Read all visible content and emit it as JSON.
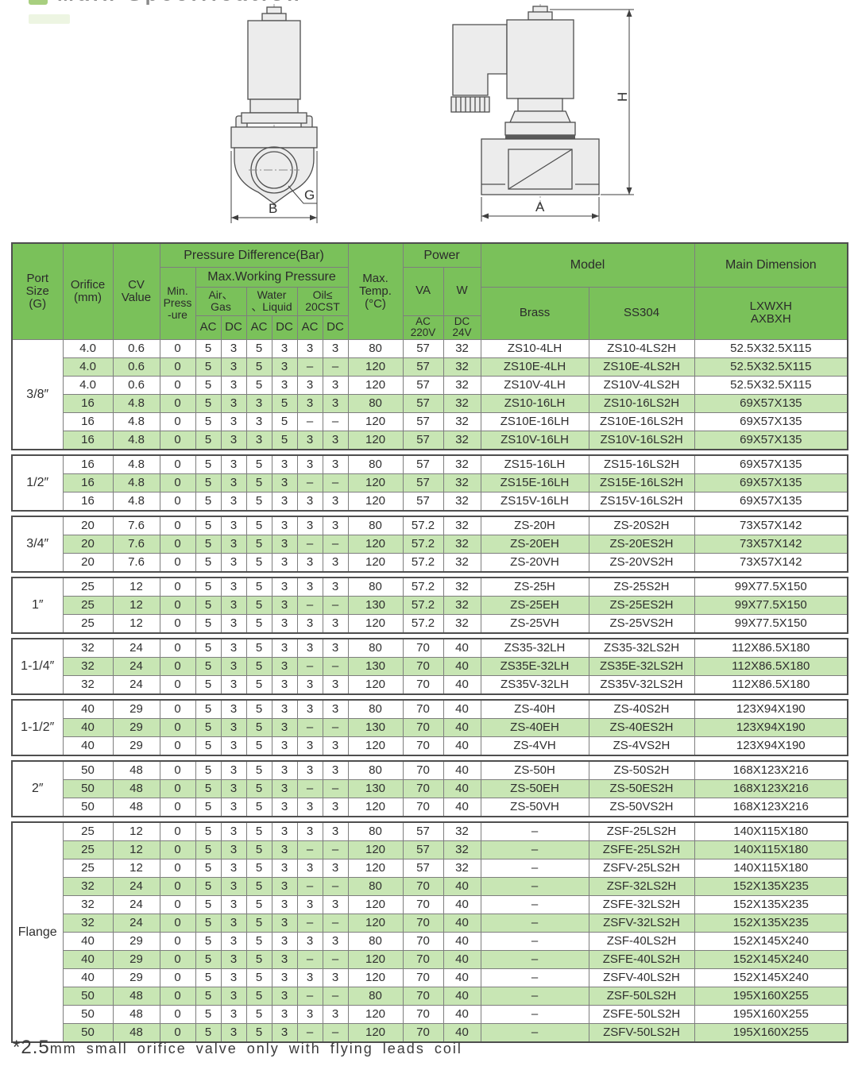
{
  "page": {
    "title": "Main Specification",
    "footnote_prefix": "*2.5",
    "footnote_rest": "mm small orifice valve only with flying leads coil"
  },
  "colors": {
    "header_green": "#7AC15A",
    "row_green": "#C8E6B4",
    "border_gray": "#7E7E7E"
  },
  "drawings": {
    "front_view": {
      "port_label": "G",
      "dim_width_label": "B"
    },
    "side_view": {
      "dim_width_label": "A",
      "dim_height_label": "H"
    }
  },
  "table": {
    "header": {
      "port_size": "Port\nSize\n(G)",
      "orifice": "Orifice\n(mm)",
      "cv": "CV\nValue",
      "pressure_difference": "Pressure Difference(Bar)",
      "min_pressure": "Min.\nPress\n-ure",
      "max_working_pressure": "Max.Working Pressure",
      "air_gas": "Air、\nGas",
      "water_liquid": "Water\n、Liquid",
      "oil": "Oil≤\n20CST",
      "ac": "AC",
      "dc": "DC",
      "max_temp": "Max.\nTemp.\n(°C)",
      "power": "Power",
      "va": "VA",
      "w": "W",
      "ac_220v": "AC\n220V",
      "dc_24v": "DC\n24V",
      "model": "Model",
      "brass": "Brass",
      "ss304": "SS304",
      "main_dimension": "Main Dimension",
      "dimension_sub": "LXWXH\nAXBXH"
    },
    "columns": [
      "orifice_mm",
      "cv_value",
      "min_pressure",
      "air_gas_ac",
      "air_gas_dc",
      "water_liquid_ac",
      "water_liquid_dc",
      "oil_ac",
      "oil_dc",
      "max_temp_c",
      "power_va_ac220v",
      "power_w_dc24v",
      "model_brass",
      "model_ss304",
      "main_dimension_lxwxh"
    ],
    "groups": [
      {
        "port": "3/8″",
        "rows": [
          [
            "4.0",
            "0.6",
            "0",
            "5",
            "3",
            "5",
            "3",
            "3",
            "3",
            "80",
            "57",
            "32",
            "ZS10-4LH",
            "ZS10-4LS2H",
            "52.5X32.5X115"
          ],
          [
            "4.0",
            "0.6",
            "0",
            "5",
            "3",
            "5",
            "3",
            "–",
            "–",
            "120",
            "57",
            "32",
            "ZS10E-4LH",
            "ZS10E-4LS2H",
            "52.5X32.5X115"
          ],
          [
            "4.0",
            "0.6",
            "0",
            "5",
            "3",
            "5",
            "3",
            "3",
            "3",
            "120",
            "57",
            "32",
            "ZS10V-4LH",
            "ZS10V-4LS2H",
            "52.5X32.5X115"
          ],
          [
            "16",
            "4.8",
            "0",
            "5",
            "3",
            "3",
            "5",
            "3",
            "3",
            "80",
            "57",
            "32",
            "ZS10-16LH",
            "ZS10-16LS2H",
            "69X57X135"
          ],
          [
            "16",
            "4.8",
            "0",
            "5",
            "3",
            "3",
            "5",
            "–",
            "–",
            "120",
            "57",
            "32",
            "ZS10E-16LH",
            "ZS10E-16LS2H",
            "69X57X135"
          ],
          [
            "16",
            "4.8",
            "0",
            "5",
            "3",
            "3",
            "5",
            "3",
            "3",
            "120",
            "57",
            "32",
            "ZS10V-16LH",
            "ZS10V-16LS2H",
            "69X57X135"
          ]
        ]
      },
      {
        "port": "1/2″",
        "rows": [
          [
            "16",
            "4.8",
            "0",
            "5",
            "3",
            "5",
            "3",
            "3",
            "3",
            "80",
            "57",
            "32",
            "ZS15-16LH",
            "ZS15-16LS2H",
            "69X57X135"
          ],
          [
            "16",
            "4.8",
            "0",
            "5",
            "3",
            "5",
            "3",
            "–",
            "–",
            "120",
            "57",
            "32",
            "ZS15E-16LH",
            "ZS15E-16LS2H",
            "69X57X135"
          ],
          [
            "16",
            "4.8",
            "0",
            "5",
            "3",
            "5",
            "3",
            "3",
            "3",
            "120",
            "57",
            "32",
            "ZS15V-16LH",
            "ZS15V-16LS2H",
            "69X57X135"
          ]
        ]
      },
      {
        "port": "3/4″",
        "rows": [
          [
            "20",
            "7.6",
            "0",
            "5",
            "3",
            "5",
            "3",
            "3",
            "3",
            "80",
            "57.2",
            "32",
            "ZS-20H",
            "ZS-20S2H",
            "73X57X142"
          ],
          [
            "20",
            "7.6",
            "0",
            "5",
            "3",
            "5",
            "3",
            "–",
            "–",
            "120",
            "57.2",
            "32",
            "ZS-20EH",
            "ZS-20ES2H",
            "73X57X142"
          ],
          [
            "20",
            "7.6",
            "0",
            "5",
            "3",
            "5",
            "3",
            "3",
            "3",
            "120",
            "57.2",
            "32",
            "ZS-20VH",
            "ZS-20VS2H",
            "73X57X142"
          ]
        ]
      },
      {
        "port": "1″",
        "rows": [
          [
            "25",
            "12",
            "0",
            "5",
            "3",
            "5",
            "3",
            "3",
            "3",
            "80",
            "57.2",
            "32",
            "ZS-25H",
            "ZS-25S2H",
            "99X77.5X150"
          ],
          [
            "25",
            "12",
            "0",
            "5",
            "3",
            "5",
            "3",
            "–",
            "–",
            "130",
            "57.2",
            "32",
            "ZS-25EH",
            "ZS-25ES2H",
            "99X77.5X150"
          ],
          [
            "25",
            "12",
            "0",
            "5",
            "3",
            "5",
            "3",
            "3",
            "3",
            "120",
            "57.2",
            "32",
            "ZS-25VH",
            "ZS-25VS2H",
            "99X77.5X150"
          ]
        ]
      },
      {
        "port": "1-1/4″",
        "rows": [
          [
            "32",
            "24",
            "0",
            "5",
            "3",
            "5",
            "3",
            "3",
            "3",
            "80",
            "70",
            "40",
            "ZS35-32LH",
            "ZS35-32LS2H",
            "112X86.5X180"
          ],
          [
            "32",
            "24",
            "0",
            "5",
            "3",
            "5",
            "3",
            "–",
            "–",
            "130",
            "70",
            "40",
            "ZS35E-32LH",
            "ZS35E-32LS2H",
            "112X86.5X180"
          ],
          [
            "32",
            "24",
            "0",
            "5",
            "3",
            "5",
            "3",
            "3",
            "3",
            "120",
            "70",
            "40",
            "ZS35V-32LH",
            "ZS35V-32LS2H",
            "112X86.5X180"
          ]
        ]
      },
      {
        "port": "1-1/2″",
        "rows": [
          [
            "40",
            "29",
            "0",
            "5",
            "3",
            "5",
            "3",
            "3",
            "3",
            "80",
            "70",
            "40",
            "ZS-40H",
            "ZS-40S2H",
            "123X94X190"
          ],
          [
            "40",
            "29",
            "0",
            "5",
            "3",
            "5",
            "3",
            "–",
            "–",
            "130",
            "70",
            "40",
            "ZS-40EH",
            "ZS-40ES2H",
            "123X94X190"
          ],
          [
            "40",
            "29",
            "0",
            "5",
            "3",
            "5",
            "3",
            "3",
            "3",
            "120",
            "70",
            "40",
            "ZS-4VH",
            "ZS-4VS2H",
            "123X94X190"
          ]
        ]
      },
      {
        "port": "2″",
        "rows": [
          [
            "50",
            "48",
            "0",
            "5",
            "3",
            "5",
            "3",
            "3",
            "3",
            "80",
            "70",
            "40",
            "ZS-50H",
            "ZS-50S2H",
            "168X123X216"
          ],
          [
            "50",
            "48",
            "0",
            "5",
            "3",
            "5",
            "3",
            "–",
            "–",
            "130",
            "70",
            "40",
            "ZS-50EH",
            "ZS-50ES2H",
            "168X123X216"
          ],
          [
            "50",
            "48",
            "0",
            "5",
            "3",
            "5",
            "3",
            "3",
            "3",
            "120",
            "70",
            "40",
            "ZS-50VH",
            "ZS-50VS2H",
            "168X123X216"
          ]
        ]
      },
      {
        "port": "Flange",
        "rows": [
          [
            "25",
            "12",
            "0",
            "5",
            "3",
            "5",
            "3",
            "3",
            "3",
            "80",
            "57",
            "32",
            "–",
            "ZSF-25LS2H",
            "140X115X180"
          ],
          [
            "25",
            "12",
            "0",
            "5",
            "3",
            "5",
            "3",
            "–",
            "–",
            "120",
            "57",
            "32",
            "–",
            "ZSFE-25LS2H",
            "140X115X180"
          ],
          [
            "25",
            "12",
            "0",
            "5",
            "3",
            "5",
            "3",
            "3",
            "3",
            "120",
            "57",
            "32",
            "–",
            "ZSFV-25LS2H",
            "140X115X180"
          ],
          [
            "32",
            "24",
            "0",
            "5",
            "3",
            "5",
            "3",
            "–",
            "–",
            "80",
            "70",
            "40",
            "–",
            "ZSF-32LS2H",
            "152X135X235"
          ],
          [
            "32",
            "24",
            "0",
            "5",
            "3",
            "5",
            "3",
            "3",
            "3",
            "120",
            "70",
            "40",
            "–",
            "ZSFE-32LS2H",
            "152X135X235"
          ],
          [
            "32",
            "24",
            "0",
            "5",
            "3",
            "5",
            "3",
            "–",
            "–",
            "120",
            "70",
            "40",
            "–",
            "ZSFV-32LS2H",
            "152X135X235"
          ],
          [
            "40",
            "29",
            "0",
            "5",
            "3",
            "5",
            "3",
            "3",
            "3",
            "80",
            "70",
            "40",
            "–",
            "ZSF-40LS2H",
            "152X145X240"
          ],
          [
            "40",
            "29",
            "0",
            "5",
            "3",
            "5",
            "3",
            "–",
            "–",
            "120",
            "70",
            "40",
            "–",
            "ZSFE-40LS2H",
            "152X145X240"
          ],
          [
            "40",
            "29",
            "0",
            "5",
            "3",
            "5",
            "3",
            "3",
            "3",
            "120",
            "70",
            "40",
            "–",
            "ZSFV-40LS2H",
            "152X145X240"
          ],
          [
            "50",
            "48",
            "0",
            "5",
            "3",
            "5",
            "3",
            "–",
            "–",
            "80",
            "70",
            "40",
            "–",
            "ZSF-50LS2H",
            "195X160X255"
          ],
          [
            "50",
            "48",
            "0",
            "5",
            "3",
            "5",
            "3",
            "3",
            "3",
            "120",
            "70",
            "40",
            "–",
            "ZSFE-50LS2H",
            "195X160X255"
          ],
          [
            "50",
            "48",
            "0",
            "5",
            "3",
            "5",
            "3",
            "–",
            "–",
            "120",
            "70",
            "40",
            "–",
            "ZSFV-50LS2H",
            "195X160X255"
          ]
        ]
      }
    ]
  }
}
